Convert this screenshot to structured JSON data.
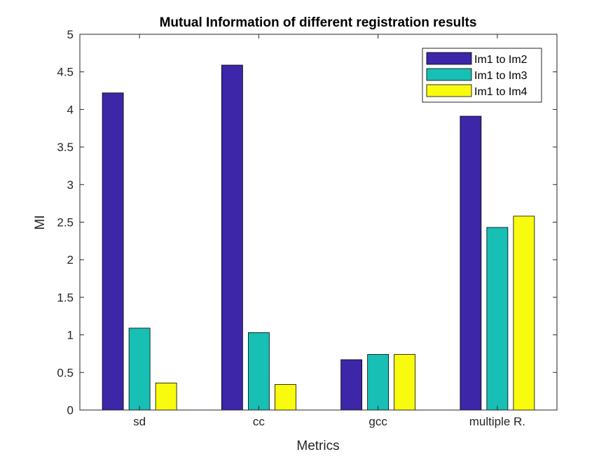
{
  "chart_data": {
    "type": "bar",
    "title": "Mutual Information of different registration results",
    "xlabel": "Metrics",
    "ylabel": "MI",
    "categories": [
      "sd",
      "cc",
      "gcc",
      "multiple R."
    ],
    "ylim": [
      0,
      5
    ],
    "yticks": [
      0,
      0.5,
      1,
      1.5,
      2,
      2.5,
      3,
      3.5,
      4,
      4.5,
      5
    ],
    "ytick_labels": [
      "0",
      "0.5",
      "1",
      "1.5",
      "2",
      "2.5",
      "3",
      "3.5",
      "4",
      "4.5",
      "5"
    ],
    "series": [
      {
        "name": "Im1 to Im2",
        "color": "#3d26a8",
        "values": [
          4.22,
          4.59,
          0.67,
          3.91
        ]
      },
      {
        "name": "Im1 to Im3",
        "color": "#17bfb4",
        "values": [
          1.09,
          1.03,
          0.74,
          2.43
        ]
      },
      {
        "name": "Im1 to Im4",
        "color": "#f9fb0e",
        "values": [
          0.36,
          0.34,
          0.74,
          2.58
        ]
      }
    ],
    "legend_position": "top-right",
    "grid": false
  }
}
